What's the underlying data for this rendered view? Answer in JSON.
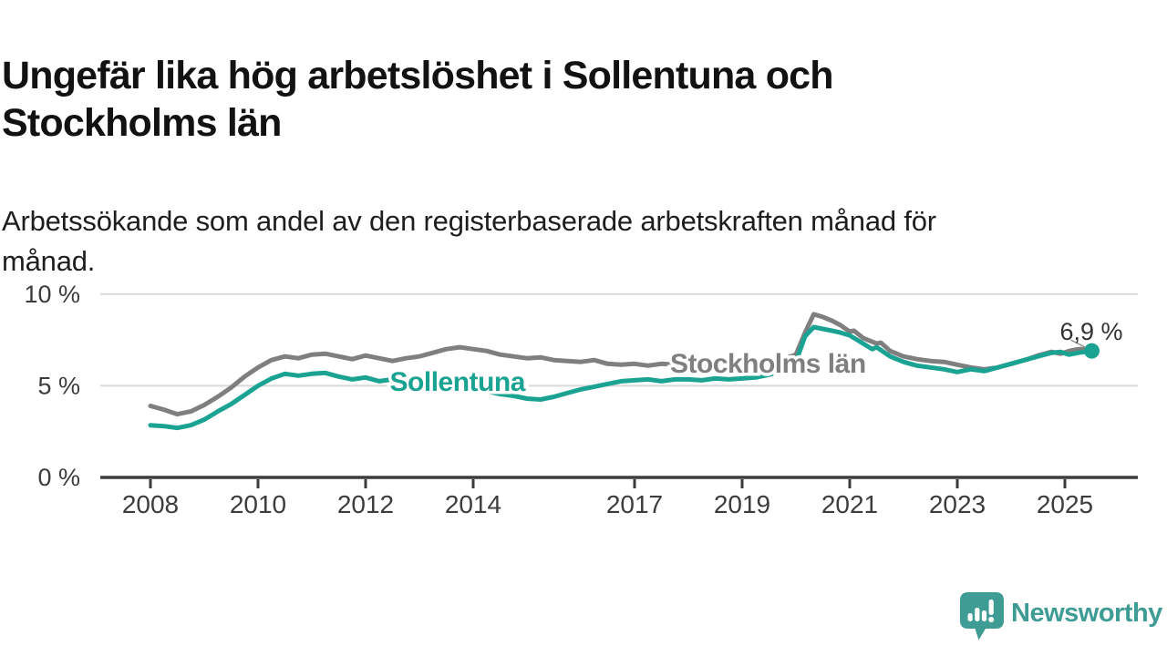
{
  "header": {
    "title_line1": "Ungefär lika hög arbetslöshet i Sollentuna och",
    "title_line2": "Stockholms län",
    "subtitle_line1": "Arbetssökande som andel av den registerbaserade arbetskraften månad för",
    "subtitle_line2": "månad."
  },
  "chart_data": {
    "type": "line",
    "title": "Ungefär lika hög arbetslöshet i Sollentuna och Stockholms län",
    "subtitle": "Arbetssökande som andel av den registerbaserade arbetskraften månad för månad.",
    "grid": "horizontal-only",
    "legend_position": "inline-on-line",
    "x_axis": {
      "range": [
        2007.85,
        2026.35
      ],
      "ticks": [
        2008,
        2010,
        2012,
        2014,
        2017,
        2019,
        2021,
        2023,
        2025
      ],
      "tick_labels": [
        "2008",
        "2010",
        "2012",
        "2014",
        "2017",
        "2019",
        "2021",
        "2023",
        "2025"
      ]
    },
    "y_axis": {
      "range": [
        0,
        10.6
      ],
      "ticks": [
        0,
        5,
        10
      ],
      "tick_labels": [
        "0 %",
        "5 %",
        "10 %"
      ],
      "unit": "%"
    },
    "colors": {
      "gridline": "#d9d9d9",
      "axis_line": "#3c3c3c",
      "tick_text": "#3c3c3c",
      "annotation_text": "#333333",
      "connector": "#999999"
    },
    "series": [
      {
        "name": "Stockholms län",
        "color": "#7f7f7f",
        "label": {
          "text": "Stockholms län",
          "year": 2017.66,
          "value": 6.18
        },
        "points": [
          [
            2008,
            3.9
          ],
          [
            2008.25,
            3.7
          ],
          [
            2008.5,
            3.45
          ],
          [
            2008.75,
            3.6
          ],
          [
            2009,
            3.95
          ],
          [
            2009.25,
            4.4
          ],
          [
            2009.5,
            4.9
          ],
          [
            2009.75,
            5.5
          ],
          [
            2010,
            6.0
          ],
          [
            2010.25,
            6.4
          ],
          [
            2010.5,
            6.6
          ],
          [
            2010.75,
            6.5
          ],
          [
            2011,
            6.7
          ],
          [
            2011.25,
            6.75
          ],
          [
            2011.5,
            6.6
          ],
          [
            2011.75,
            6.45
          ],
          [
            2012,
            6.65
          ],
          [
            2012.25,
            6.5
          ],
          [
            2012.5,
            6.35
          ],
          [
            2012.75,
            6.5
          ],
          [
            2013,
            6.6
          ],
          [
            2013.25,
            6.8
          ],
          [
            2013.5,
            7.0
          ],
          [
            2013.75,
            7.1
          ],
          [
            2014,
            7.0
          ],
          [
            2014.25,
            6.9
          ],
          [
            2014.5,
            6.7
          ],
          [
            2014.75,
            6.6
          ],
          [
            2015,
            6.5
          ],
          [
            2015.25,
            6.55
          ],
          [
            2015.5,
            6.4
          ],
          [
            2015.75,
            6.35
          ],
          [
            2016,
            6.3
          ],
          [
            2016.25,
            6.4
          ],
          [
            2016.5,
            6.2
          ],
          [
            2016.75,
            6.15
          ],
          [
            2017,
            6.2
          ],
          [
            2017.25,
            6.1
          ],
          [
            2017.5,
            6.2
          ],
          [
            2017.75,
            6.15
          ],
          [
            2018,
            6.2
          ],
          [
            2018.25,
            6.15
          ],
          [
            2018.5,
            6.1
          ],
          [
            2018.75,
            6.15
          ],
          [
            2019,
            6.2
          ],
          [
            2019.25,
            6.25
          ],
          [
            2019.5,
            6.3
          ],
          [
            2019.75,
            6.45
          ],
          [
            2020,
            6.7
          ],
          [
            2020.17,
            7.9
          ],
          [
            2020.33,
            8.9
          ],
          [
            2020.5,
            8.75
          ],
          [
            2020.67,
            8.55
          ],
          [
            2020.83,
            8.3
          ],
          [
            2021,
            7.95
          ],
          [
            2021.08,
            8.0
          ],
          [
            2021.25,
            7.6
          ],
          [
            2021.5,
            7.3
          ],
          [
            2021.58,
            7.35
          ],
          [
            2021.75,
            6.9
          ],
          [
            2022,
            6.6
          ],
          [
            2022.25,
            6.45
          ],
          [
            2022.5,
            6.35
          ],
          [
            2022.75,
            6.3
          ],
          [
            2023,
            6.15
          ],
          [
            2023.25,
            6.0
          ],
          [
            2023.5,
            5.9
          ],
          [
            2023.75,
            6.0
          ],
          [
            2024,
            6.2
          ],
          [
            2024.25,
            6.4
          ],
          [
            2024.5,
            6.65
          ],
          [
            2024.75,
            6.85
          ],
          [
            2024.92,
            6.75
          ],
          [
            2025.08,
            6.9
          ],
          [
            2025.25,
            7.0
          ],
          [
            2025.5,
            7.0
          ]
        ]
      },
      {
        "name": "Sollentuna",
        "color": "#1aa392",
        "label": {
          "text": "Sollentuna",
          "year": 2012.45,
          "value": 5.2
        },
        "end_dot": {
          "year": 2025.5,
          "value": 6.9,
          "radius": 8.5
        },
        "points": [
          [
            2008,
            2.85
          ],
          [
            2008.25,
            2.8
          ],
          [
            2008.5,
            2.7
          ],
          [
            2008.75,
            2.85
          ],
          [
            2009,
            3.15
          ],
          [
            2009.25,
            3.6
          ],
          [
            2009.5,
            4.0
          ],
          [
            2009.75,
            4.5
          ],
          [
            2010,
            5.0
          ],
          [
            2010.25,
            5.4
          ],
          [
            2010.5,
            5.65
          ],
          [
            2010.75,
            5.55
          ],
          [
            2011,
            5.65
          ],
          [
            2011.25,
            5.7
          ],
          [
            2011.5,
            5.5
          ],
          [
            2011.75,
            5.35
          ],
          [
            2012,
            5.45
          ],
          [
            2012.25,
            5.25
          ],
          [
            2012.5,
            5.35
          ],
          [
            2012.75,
            5.25
          ],
          [
            2013,
            5.3
          ],
          [
            2013.25,
            5.15
          ],
          [
            2013.5,
            5.05
          ],
          [
            2013.75,
            4.95
          ],
          [
            2014,
            4.85
          ],
          [
            2014.25,
            4.7
          ],
          [
            2014.5,
            4.55
          ],
          [
            2014.75,
            4.45
          ],
          [
            2015,
            4.3
          ],
          [
            2015.25,
            4.25
          ],
          [
            2015.5,
            4.4
          ],
          [
            2015.75,
            4.6
          ],
          [
            2016,
            4.8
          ],
          [
            2016.25,
            4.95
          ],
          [
            2016.5,
            5.1
          ],
          [
            2016.75,
            5.25
          ],
          [
            2017,
            5.3
          ],
          [
            2017.25,
            5.35
          ],
          [
            2017.5,
            5.25
          ],
          [
            2017.75,
            5.35
          ],
          [
            2018,
            5.35
          ],
          [
            2018.25,
            5.3
          ],
          [
            2018.5,
            5.4
          ],
          [
            2018.75,
            5.35
          ],
          [
            2019,
            5.4
          ],
          [
            2019.25,
            5.45
          ],
          [
            2019.5,
            5.6
          ],
          [
            2019.75,
            5.8
          ],
          [
            2020,
            6.3
          ],
          [
            2020.17,
            7.7
          ],
          [
            2020.33,
            8.2
          ],
          [
            2020.5,
            8.1
          ],
          [
            2020.67,
            8.0
          ],
          [
            2020.83,
            7.9
          ],
          [
            2021,
            7.75
          ],
          [
            2021.25,
            7.3
          ],
          [
            2021.42,
            7.0
          ],
          [
            2021.5,
            7.1
          ],
          [
            2021.75,
            6.6
          ],
          [
            2022,
            6.3
          ],
          [
            2022.25,
            6.1
          ],
          [
            2022.5,
            6.0
          ],
          [
            2022.75,
            5.9
          ],
          [
            2023,
            5.75
          ],
          [
            2023.25,
            5.9
          ],
          [
            2023.5,
            5.8
          ],
          [
            2023.75,
            6.0
          ],
          [
            2024,
            6.2
          ],
          [
            2024.25,
            6.4
          ],
          [
            2024.5,
            6.6
          ],
          [
            2024.75,
            6.8
          ],
          [
            2024.92,
            6.85
          ],
          [
            2025.08,
            6.7
          ],
          [
            2025.25,
            6.8
          ],
          [
            2025.5,
            6.9
          ]
        ]
      }
    ],
    "annotation": {
      "text": "6,9 %",
      "series": "Sollentuna",
      "year": 2025.5,
      "value": 6.9
    }
  },
  "footer": {
    "logo_text": "Newsworthy",
    "logo_color": "#3e9c94"
  }
}
